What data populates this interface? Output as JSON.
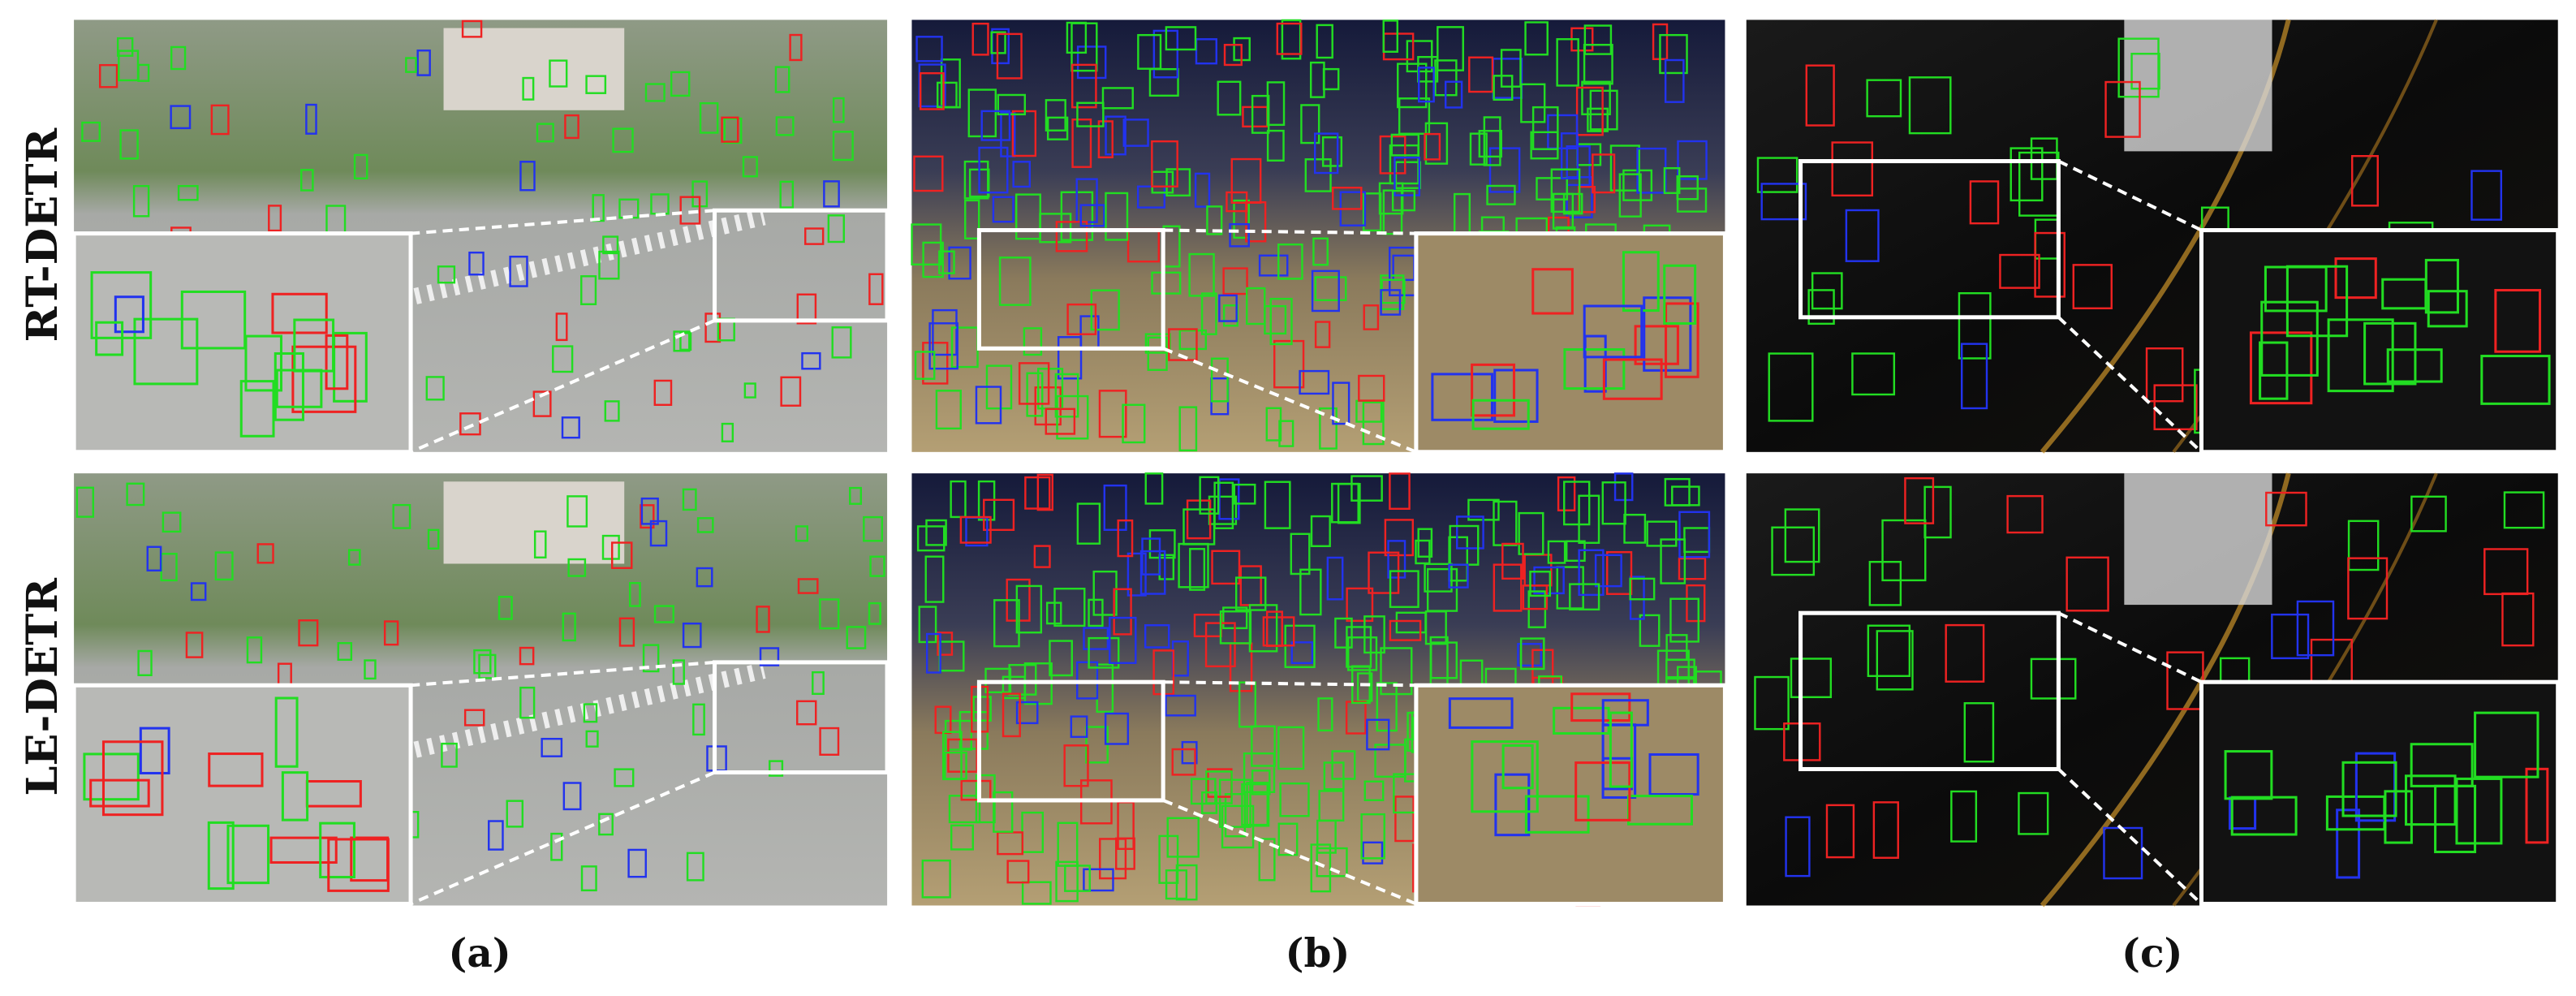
{
  "row_labels": [
    "RT-DETR",
    "LE-DETR"
  ],
  "column_labels": [
    "(a)",
    "(b)",
    "(c)"
  ]
}
